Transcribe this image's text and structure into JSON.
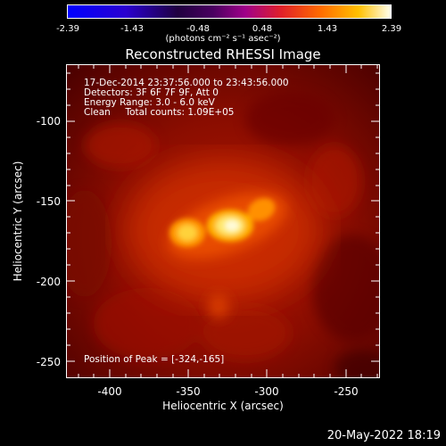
{
  "colorbar": {
    "labels": [
      "-2.39",
      "-1.43",
      "-0.48",
      "0.48",
      "1.43",
      "2.39"
    ],
    "unit_text": "(photons cm⁻² s⁻¹ asec⁻²)"
  },
  "title": "Reconstructed RHESSI Image",
  "info": {
    "line1": "17-Dec-2014 23:37:56.000 to 23:43:56.000",
    "line2": "Detectors: 3F 6F 7F 9F, Att 0",
    "line3": "Energy Range: 3.0 - 6.0 keV",
    "line4": "Clean     Total counts: 1.09E+05"
  },
  "peak_text": "Position of Peak = [-324,-165]",
  "axes": {
    "x_label": "Heliocentric X (arcsec)",
    "y_label": "Heliocentric Y (arcsec)",
    "x_ticks": [
      "-400",
      "-350",
      "-300",
      "-250"
    ],
    "y_ticks": [
      "-100",
      "-150",
      "-200",
      "-250"
    ]
  },
  "date_stamp": "20-May-2022 18:19",
  "colors": {
    "background": "#000000",
    "axis": "#ffffff"
  }
}
